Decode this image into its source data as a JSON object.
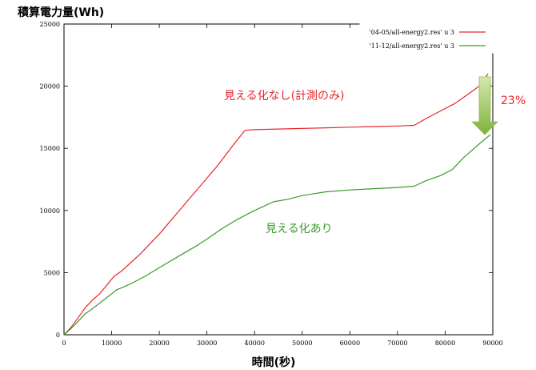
{
  "chart_data": {
    "type": "line",
    "title": "",
    "ylabel": "積算電力量(Wh)",
    "xlabel": "時間(秒)",
    "xlim": [
      0,
      90000
    ],
    "ylim": [
      0,
      25000
    ],
    "x_ticks": [
      "0",
      "10000",
      "20000",
      "30000",
      "40000",
      "50000",
      "60000",
      "70000",
      "80000",
      "90000"
    ],
    "y_ticks": [
      "0",
      "5000",
      "10000",
      "15000",
      "20000",
      "25000"
    ],
    "grid": false,
    "legend_position": "top-right",
    "series": [
      {
        "name": "'04-05/all-energy2.res' u 3",
        "color": "#e8262c",
        "x": [
          0,
          1500,
          3000,
          4500,
          6000,
          7500,
          9000,
          10500,
          12000,
          14000,
          16000,
          18000,
          20000,
          22000,
          24000,
          26000,
          28000,
          30000,
          32000,
          34000,
          36000,
          38000,
          40000,
          45000,
          50000,
          55000,
          60000,
          65000,
          70000,
          73500,
          76000,
          79000,
          82000,
          85000,
          87500,
          89000
        ],
        "values": [
          0,
          600,
          1400,
          2200,
          2800,
          3300,
          4000,
          4700,
          5100,
          5800,
          6500,
          7300,
          8100,
          9000,
          9900,
          10800,
          11700,
          12600,
          13500,
          14500,
          15500,
          16450,
          16500,
          16550,
          16600,
          16650,
          16700,
          16750,
          16800,
          16850,
          17400,
          18000,
          18600,
          19400,
          20100,
          21000
        ]
      },
      {
        "name": "'11-12/all-energy2.res' u 3",
        "color": "#3a9b2a",
        "x": [
          0,
          1500,
          3000,
          4500,
          6000,
          8000,
          10000,
          11000,
          14000,
          17000,
          20000,
          24000,
          28000,
          30000,
          33000,
          36000,
          40000,
          44000,
          47000,
          50000,
          55000,
          60000,
          65000,
          70000,
          73500,
          76000,
          79000,
          81500,
          84000,
          87000,
          89500
        ],
        "values": [
          0,
          500,
          1100,
          1700,
          2100,
          2700,
          3300,
          3600,
          4100,
          4700,
          5400,
          6300,
          7200,
          7700,
          8500,
          9200,
          10000,
          10700,
          10900,
          11200,
          11500,
          11650,
          11750,
          11850,
          11950,
          12400,
          12800,
          13300,
          14300,
          15300,
          16100
        ]
      }
    ],
    "annotations": {
      "without_visualization": "見える化なし(計測のみ)",
      "with_visualization": "見える化あり",
      "reduction": "23%"
    }
  }
}
